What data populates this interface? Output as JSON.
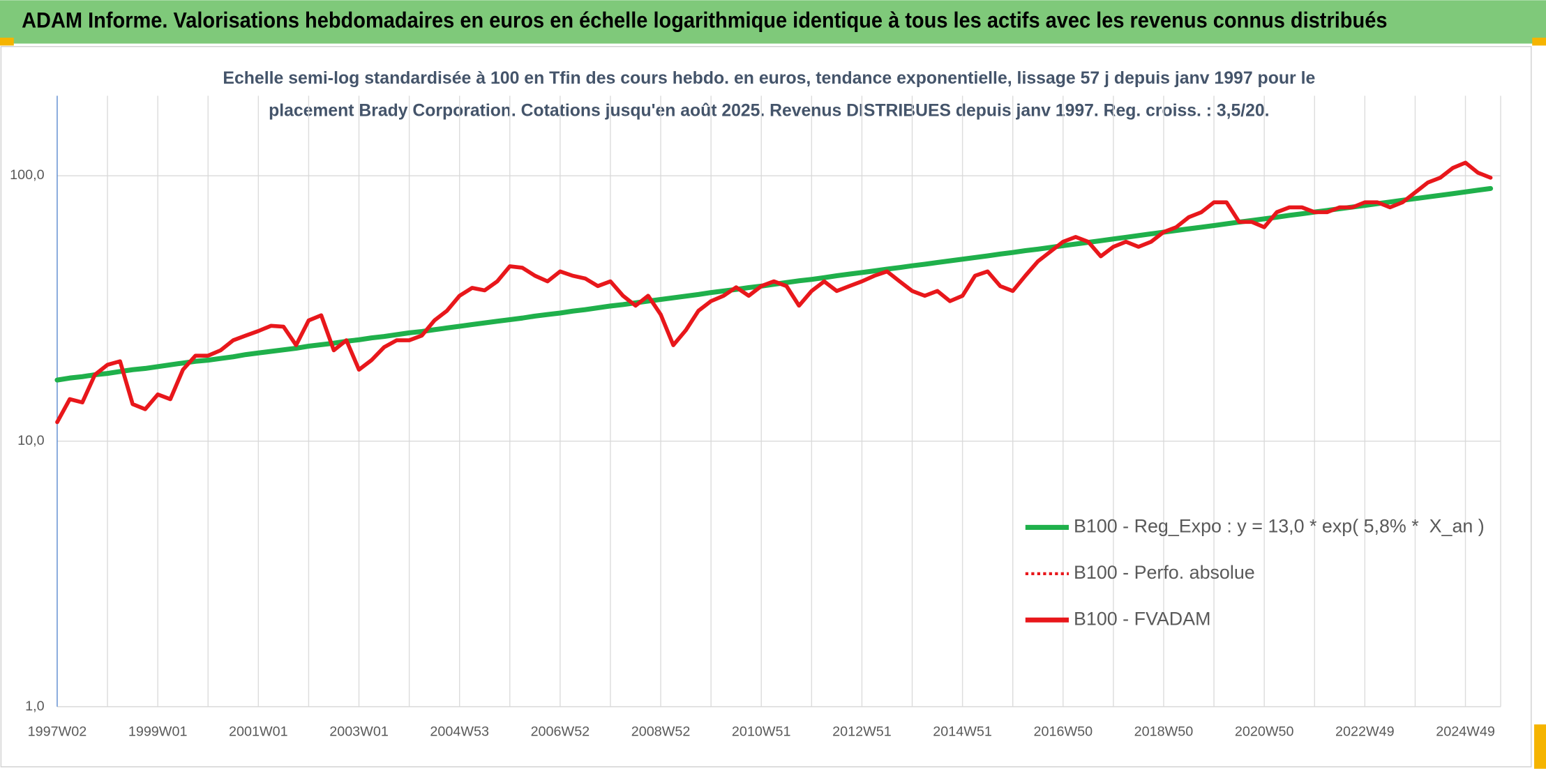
{
  "chart_data": {
    "type": "line",
    "title": "ADAM Informe. Valorisations hebdomadaires en euros en échelle logarithmique identique à tous les actifs avec les revenus connus distribués",
    "subtitle": [
      "Echelle semi-log standardisée à 100 en Tfin des cours hebdo. en euros, tendance exponentielle, lissage 57 j depuis janv 1997 pour le",
      "placement Brady Corporation. Cotations jusqu'en août 2025. Revenus DISTRIBUES depuis janv 1997. Reg. croiss. : 3,5/20."
    ],
    "log_scale": true,
    "grid": true,
    "ylim": [
      1,
      200
    ],
    "yticks": [
      {
        "value": 1,
        "label": "1,0"
      },
      {
        "value": 10,
        "label": "10,0"
      },
      {
        "value": 100,
        "label": "100,0"
      }
    ],
    "categories": [
      "1997W02",
      null,
      null,
      null,
      null,
      null,
      null,
      null,
      "1999W01",
      null,
      null,
      null,
      null,
      null,
      null,
      null,
      "2001W01",
      null,
      null,
      null,
      null,
      null,
      null,
      null,
      "2003W01",
      null,
      null,
      null,
      null,
      null,
      null,
      null,
      "2004W53",
      null,
      null,
      null,
      null,
      null,
      null,
      null,
      "2006W52",
      null,
      null,
      null,
      null,
      null,
      null,
      null,
      "2008W52",
      null,
      null,
      null,
      null,
      null,
      null,
      null,
      "2010W51",
      null,
      null,
      null,
      null,
      null,
      null,
      null,
      "2012W51",
      null,
      null,
      null,
      null,
      null,
      null,
      null,
      "2014W51",
      null,
      null,
      null,
      null,
      null,
      null,
      null,
      "2016W50",
      null,
      null,
      null,
      null,
      null,
      null,
      null,
      "2018W50",
      null,
      null,
      null,
      null,
      null,
      null,
      null,
      "2020W50",
      null,
      null,
      null,
      null,
      null,
      null,
      null,
      "2022W49",
      null,
      null,
      null,
      null,
      null,
      null,
      null,
      "2024W49",
      null,
      null
    ],
    "series": [
      {
        "name": "B100 - Reg_Expo : y = 13,0 * exp( 5,8% *  X_an )",
        "color": "#1fb04b",
        "dash": "solid",
        "values": [
          17.0,
          17.3,
          17.5,
          17.8,
          18.0,
          18.3,
          18.6,
          18.8,
          19.1,
          19.4,
          19.7,
          20.0,
          20.2,
          20.5,
          20.8,
          21.2,
          21.5,
          21.8,
          22.1,
          22.4,
          22.8,
          23.1,
          23.4,
          23.8,
          24.1,
          24.5,
          24.8,
          25.2,
          25.6,
          25.9,
          26.3,
          26.7,
          27.1,
          27.5,
          27.9,
          28.3,
          28.7,
          29.1,
          29.6,
          30.0,
          30.4,
          30.9,
          31.3,
          31.8,
          32.3,
          32.7,
          33.2,
          33.7,
          34.2,
          34.7,
          35.2,
          35.7,
          36.3,
          36.8,
          37.3,
          37.9,
          38.4,
          39.0,
          39.6,
          40.2,
          40.7,
          41.3,
          42.0,
          42.6,
          43.2,
          43.8,
          44.5,
          45.1,
          45.8,
          46.4,
          47.1,
          47.8,
          48.5,
          49.2,
          49.9,
          50.7,
          51.4,
          52.2,
          52.9,
          53.7,
          54.5,
          55.3,
          56.1,
          56.9,
          57.8,
          58.6,
          59.5,
          60.4,
          61.3,
          62.2,
          63.1,
          64.0,
          64.9,
          65.9,
          66.9,
          67.8,
          68.8,
          69.8,
          70.9,
          71.9,
          73.0,
          74.0,
          75.1,
          76.2,
          77.3,
          78.5,
          79.6,
          80.8,
          82.0,
          83.2,
          84.4,
          85.6,
          86.9,
          88.2,
          89.5
        ]
      },
      {
        "name": "B100 - Perfo. absolue",
        "color": "#e8171b",
        "dash": "dotted"
      },
      {
        "name": "B100 - FVADAM",
        "color": "#e8171b",
        "dash": "solid",
        "values": [
          11.8,
          14.4,
          14,
          17.8,
          19.4,
          20,
          13.8,
          13.2,
          15,
          14.4,
          18.6,
          21,
          21,
          22,
          24,
          25,
          26,
          27.2,
          27,
          23,
          28.5,
          29.8,
          22,
          24,
          18.6,
          20.2,
          22.6,
          24,
          24,
          25,
          28.5,
          31,
          35.3,
          37.8,
          37,
          40,
          45.6,
          45,
          42,
          40,
          43.6,
          42,
          41,
          38.4,
          40,
          35.3,
          32.4,
          35.3,
          30,
          23,
          26.2,
          31,
          33.7,
          35.3,
          38,
          35.3,
          38.4,
          40,
          38.4,
          32.4,
          36.8,
          40,
          36.8,
          38.4,
          40,
          42,
          43.6,
          40,
          36.8,
          35.3,
          36.8,
          33.7,
          35.3,
          42,
          43.6,
          38.4,
          36.8,
          42,
          47.6,
          51.8,
          56.4,
          58.8,
          56.4,
          49.7,
          54,
          56.4,
          54,
          56.4,
          61.4,
          64,
          69.8,
          72.9,
          79.4,
          79.4,
          67,
          67,
          64,
          72.9,
          76,
          76,
          72.9,
          72.9,
          76,
          76,
          79.4,
          79.4,
          76,
          79.4,
          86.5,
          94.2,
          98.3,
          107,
          112,
          102.6,
          98.3
        ]
      }
    ]
  }
}
